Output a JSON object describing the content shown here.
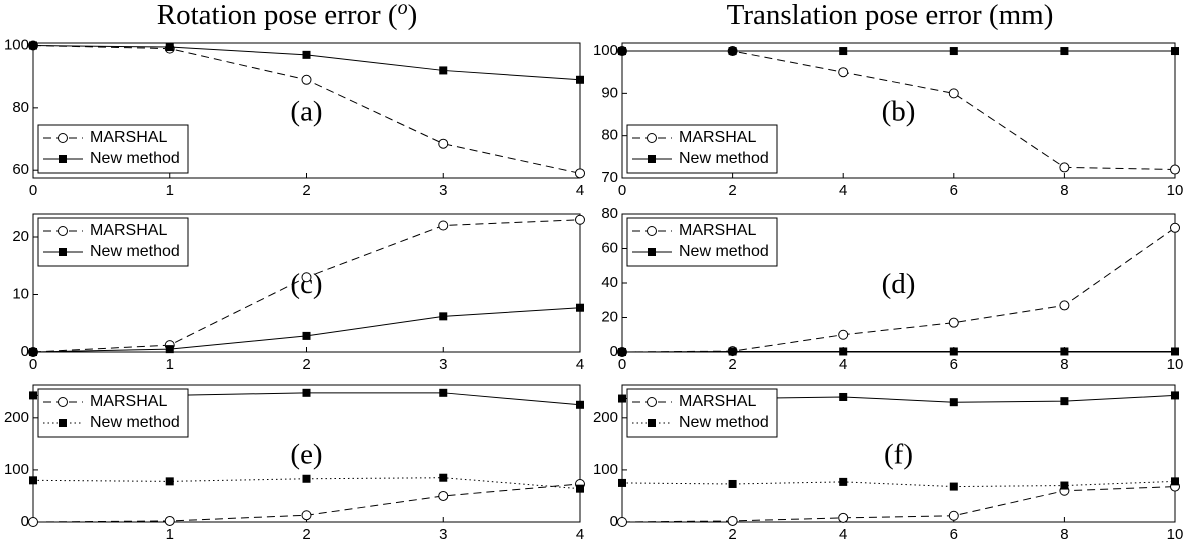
{
  "headers": [
    [
      "Rotation pose error (",
      "o",
      ")"
    ],
    [
      "Translation pose error (mm)"
    ]
  ],
  "chart_data": [
    {
      "type": "line",
      "annotation": "(a)",
      "x": [
        0,
        1,
        2,
        3,
        4
      ],
      "xlim": [
        0,
        4
      ],
      "xticks": [
        0,
        1,
        2,
        3,
        4
      ],
      "ylim": [
        57.5,
        100.8
      ],
      "yticks": [
        60,
        80,
        100
      ],
      "legend": "lower left",
      "series": [
        {
          "name": "MARSHAL",
          "color": "#000000",
          "linestyle": "dashed",
          "marker": "circle",
          "values": [
            100,
            99,
            89,
            68.5,
            59
          ]
        },
        {
          "name": "New method",
          "color": "#000000",
          "linestyle": "solid",
          "marker": "square",
          "values": [
            100,
            99.5,
            97,
            92,
            89
          ]
        }
      ]
    },
    {
      "type": "line",
      "annotation": "(b)",
      "x": [
        0,
        2,
        4,
        6,
        8,
        10
      ],
      "xlim": [
        0,
        10
      ],
      "xticks": [
        0,
        2,
        4,
        6,
        8,
        10
      ],
      "ylim": [
        70,
        101.9
      ],
      "yticks": [
        70,
        80,
        90,
        100
      ],
      "legend": "lower left",
      "series": [
        {
          "name": "MARSHAL",
          "color": "#000000",
          "linestyle": "dashed",
          "marker": "circle",
          "values": [
            100,
            100,
            95,
            90,
            72.5,
            72
          ]
        },
        {
          "name": "New method",
          "color": "#000000",
          "linestyle": "solid",
          "marker": "square",
          "values": [
            100,
            100,
            100,
            100,
            100,
            100
          ]
        }
      ]
    },
    {
      "type": "line",
      "annotation": "(c)",
      "x": [
        0,
        1,
        2,
        3,
        4
      ],
      "xlim": [
        0,
        4
      ],
      "xticks": [
        0,
        1,
        2,
        3,
        4
      ],
      "ylim": [
        0,
        24
      ],
      "yticks": [
        0,
        10,
        20
      ],
      "legend": "upper left",
      "series": [
        {
          "name": "MARSHAL",
          "color": "#000000",
          "linestyle": "dashed",
          "marker": "circle",
          "values": [
            0,
            1.2,
            13,
            22,
            23
          ]
        },
        {
          "name": "New method",
          "color": "#000000",
          "linestyle": "solid",
          "marker": "square",
          "values": [
            0,
            0.5,
            2.8,
            6.2,
            7.7
          ]
        }
      ]
    },
    {
      "type": "line",
      "annotation": "(d)",
      "x": [
        0,
        2,
        4,
        6,
        8,
        10
      ],
      "xlim": [
        0,
        10
      ],
      "xticks": [
        0,
        2,
        4,
        6,
        8,
        10
      ],
      "ylim": [
        0,
        80
      ],
      "yticks": [
        0,
        20,
        40,
        60,
        80
      ],
      "legend": "upper left",
      "series": [
        {
          "name": "MARSHAL",
          "color": "#000000",
          "linestyle": "dashed",
          "marker": "circle",
          "values": [
            0,
            0.5,
            10,
            17,
            27,
            72
          ]
        },
        {
          "name": "New method",
          "color": "#000000",
          "linestyle": "solid",
          "marker": "square",
          "values": [
            0,
            0.3,
            0.3,
            0.3,
            0.3,
            0.3
          ]
        }
      ]
    },
    {
      "type": "line",
      "annotation": "(e)",
      "x": [
        0,
        1,
        2,
        3,
        4
      ],
      "xlim": [
        0,
        4
      ],
      "xticks": [
        1,
        2,
        3,
        4
      ],
      "ylim": [
        0,
        263
      ],
      "yticks": [
        0,
        100,
        200
      ],
      "legend": "upper left",
      "series": [
        {
          "name": "MARSHAL",
          "color": "#000000",
          "linestyle": "dashed",
          "marker": "circle",
          "values": [
            0,
            2,
            13,
            50,
            73
          ]
        },
        {
          "name": "New method",
          "color": "#000000",
          "linestyle": "dotted",
          "marker": "square",
          "values": [
            80,
            78,
            83,
            85,
            64
          ]
        },
        {
          "color": "#000000",
          "linestyle": "solid",
          "marker": "square",
          "values": [
            243,
            243,
            248,
            248,
            225
          ]
        }
      ]
    },
    {
      "type": "line",
      "annotation": "(f)",
      "x": [
        0,
        2,
        4,
        6,
        8,
        10
      ],
      "xlim": [
        0,
        10
      ],
      "xticks": [
        2,
        4,
        6,
        8,
        10
      ],
      "ylim": [
        0,
        263
      ],
      "yticks": [
        0,
        100,
        200
      ],
      "legend": "upper left",
      "series": [
        {
          "name": "MARSHAL",
          "color": "#000000",
          "linestyle": "dashed",
          "marker": "circle",
          "values": [
            0,
            2,
            8,
            12,
            60,
            68
          ]
        },
        {
          "name": "New method",
          "color": "#000000",
          "linestyle": "dotted",
          "marker": "square",
          "values": [
            75,
            73,
            77,
            68,
            70,
            78
          ]
        },
        {
          "color": "#000000",
          "linestyle": "solid",
          "marker": "square",
          "values": [
            237,
            237,
            240,
            230,
            232,
            243
          ]
        }
      ]
    }
  ]
}
